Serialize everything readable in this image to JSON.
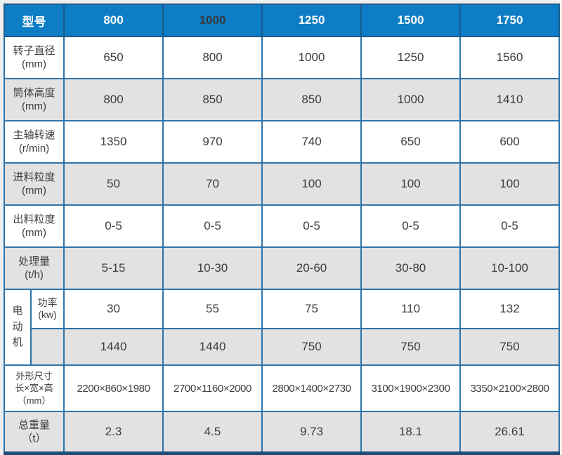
{
  "colors": {
    "header_bg": "#0d7dc6",
    "header_text": "#ffffff",
    "header_1000_text": "#3a3a3a",
    "cell_border": "#2f74a9",
    "outer_border": "#1e5a8d",
    "bottom_bar": "#1d4e77",
    "row_alt_bg": "#e2e2e2",
    "row_bg": "#ffffff",
    "body_text": "#3d3d3d",
    "page_bg": "#efeff0"
  },
  "chart_data": {
    "type": "table",
    "title": "",
    "header": {
      "model_label": "型号",
      "models": [
        "800",
        "1000",
        "1250",
        "1500",
        "1750"
      ]
    },
    "rows": {
      "rotor": {
        "label": "转子直径",
        "unit": "(mm)",
        "values": [
          "650",
          "800",
          "1000",
          "1250",
          "1560"
        ]
      },
      "barrel": {
        "label": "筒体高度",
        "unit": "(mm)",
        "values": [
          "800",
          "850",
          "850",
          "1000",
          "1410"
        ]
      },
      "spindle": {
        "label": "主轴转速",
        "unit": "(r/min)",
        "values": [
          "1350",
          "970",
          "740",
          "650",
          "600"
        ]
      },
      "feed": {
        "label": "进料粒度",
        "unit": "(mm)",
        "values": [
          "50",
          "70",
          "100",
          "100",
          "100"
        ]
      },
      "discharge": {
        "label": "出料粒度",
        "unit": "(mm)",
        "values": [
          "0-5",
          "0-5",
          "0-5",
          "0-5",
          "0-5"
        ]
      },
      "capacity": {
        "label": "处理量",
        "unit": "(t/h)",
        "values": [
          "5-15",
          "10-30",
          "20-60",
          "30-80",
          "10-100"
        ]
      },
      "motor": {
        "group_label": "电动机",
        "power": {
          "label": "功率",
          "unit": "(kw)",
          "values": [
            "30",
            "55",
            "75",
            "110",
            "132"
          ]
        },
        "speed": {
          "label": "",
          "values": [
            "1440",
            "1440",
            "750",
            "750",
            "750"
          ]
        }
      },
      "dimensions": {
        "label_line1": "外形尺寸",
        "label_line2": "长×宽×高",
        "unit": "（mm）",
        "values": [
          "2200×860×1980",
          "2700×1160×2000",
          "2800×1400×2730",
          "3100×1900×2300",
          "3350×2100×2800"
        ]
      },
      "weight": {
        "label": "总重量",
        "unit": "（t）",
        "values": [
          "2.3",
          "4.5",
          "9.73",
          "18.1",
          "26.61"
        ]
      }
    }
  }
}
